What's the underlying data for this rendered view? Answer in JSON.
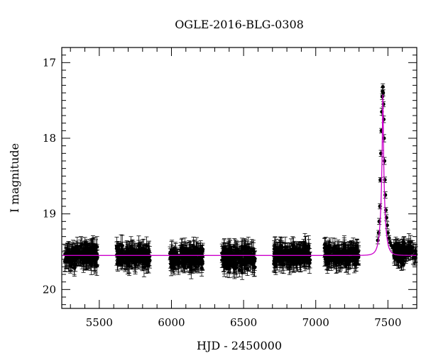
{
  "chart_data": {
    "type": "scatter",
    "title": "OGLE-2016-BLG-0308",
    "xlabel": "HJD - 2450000",
    "ylabel": "I magnitude",
    "xlim": [
      5240,
      7700
    ],
    "ylim": [
      20.25,
      16.8
    ],
    "y_inverted": true,
    "grid": false,
    "x_ticks": [
      5500,
      6000,
      6500,
      7000,
      7500
    ],
    "y_ticks": [
      17,
      18,
      19,
      20
    ],
    "x_tick_labels": [
      "5500",
      "6000",
      "6500",
      "7000",
      "7500"
    ],
    "y_tick_labels": [
      "17",
      "18",
      "19",
      "20"
    ],
    "colors": {
      "points": "#000000",
      "model": "#cc00cc"
    },
    "baseline_magnitude": 19.55,
    "seasons": [
      {
        "x_start": 5260,
        "x_end": 5490,
        "mean": 19.55,
        "spread": 0.12
      },
      {
        "x_start": 5620,
        "x_end": 5850,
        "mean": 19.56,
        "spread": 0.11
      },
      {
        "x_start": 5990,
        "x_end": 6220,
        "mean": 19.57,
        "spread": 0.12
      },
      {
        "x_start": 6350,
        "x_end": 6580,
        "mean": 19.58,
        "spread": 0.12
      },
      {
        "x_start": 6710,
        "x_end": 6960,
        "mean": 19.55,
        "spread": 0.12
      },
      {
        "x_start": 7060,
        "x_end": 7300,
        "mean": 19.55,
        "spread": 0.11
      },
      {
        "x_start": 7440,
        "x_end": 7700,
        "mean": 19.55,
        "spread": 0.1
      }
    ],
    "peak_points": [
      {
        "x": 7445,
        "y": 18.9
      },
      {
        "x": 7448,
        "y": 18.55
      },
      {
        "x": 7452,
        "y": 18.2
      },
      {
        "x": 7455,
        "y": 17.9
      },
      {
        "x": 7458,
        "y": 17.65
      },
      {
        "x": 7461,
        "y": 17.45
      },
      {
        "x": 7463,
        "y": 17.38
      },
      {
        "x": 7465,
        "y": 17.32
      },
      {
        "x": 7467,
        "y": 17.4
      },
      {
        "x": 7469,
        "y": 17.55
      },
      {
        "x": 7471,
        "y": 17.75
      },
      {
        "x": 7473,
        "y": 18.0
      },
      {
        "x": 7476,
        "y": 18.3
      },
      {
        "x": 7479,
        "y": 18.55
      },
      {
        "x": 7482,
        "y": 18.75
      },
      {
        "x": 7486,
        "y": 18.95
      },
      {
        "x": 7490,
        "y": 19.05
      },
      {
        "x": 7495,
        "y": 19.15
      },
      {
        "x": 7500,
        "y": 19.25
      },
      {
        "x": 7508,
        "y": 19.32
      },
      {
        "x": 7515,
        "y": 19.38
      },
      {
        "x": 7525,
        "y": 19.42
      },
      {
        "x": 7535,
        "y": 19.45
      },
      {
        "x": 7440,
        "y": 19.1
      },
      {
        "x": 7436,
        "y": 19.25
      },
      {
        "x": 7430,
        "y": 19.35
      }
    ],
    "model": {
      "t0": 7465,
      "peak_magnitude": 17.42,
      "baseline_magnitude": 19.55
    }
  }
}
